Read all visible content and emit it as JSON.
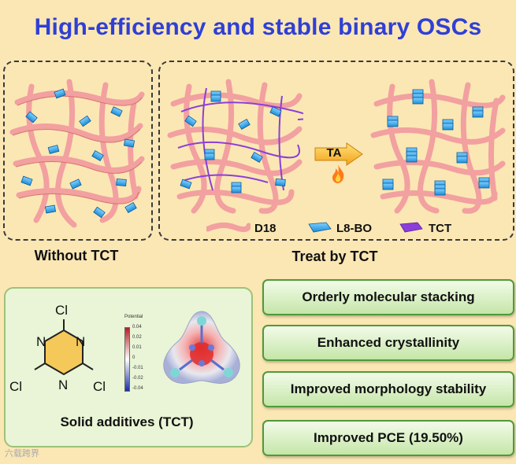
{
  "title": "High-efficiency and stable binary OSCs",
  "panels": {
    "left_caption": "Without TCT",
    "right_caption": "Treat by TCT",
    "arrow_label": "TA"
  },
  "legend": [
    {
      "label": "D18",
      "color": "#f2a0a0"
    },
    {
      "label": "L8-BO",
      "color": "#35a8e8"
    },
    {
      "label": "TCT",
      "color": "#8b3fd9"
    }
  ],
  "molecule": {
    "caption": "Solid additives (TCT)",
    "atoms": {
      "cl": "Cl",
      "n": "N"
    },
    "colorbar": {
      "title": "Potential",
      "ticks": [
        "0.04",
        "0.02",
        "0.01",
        "0",
        "-0.01",
        "-0.02",
        "-0.04"
      ]
    }
  },
  "features": [
    "Orderly molecular stacking",
    "Enhanced crystallinity",
    "Improved morphology stability",
    "Improved PCE (19.50%)"
  ],
  "watermark": "六载跨界",
  "colors": {
    "title": "#2f3fd6",
    "background": "#fbe7b4",
    "d18": "#f2a0a0",
    "l8bo": "#35a8e8",
    "tct": "#8b3fd9"
  }
}
